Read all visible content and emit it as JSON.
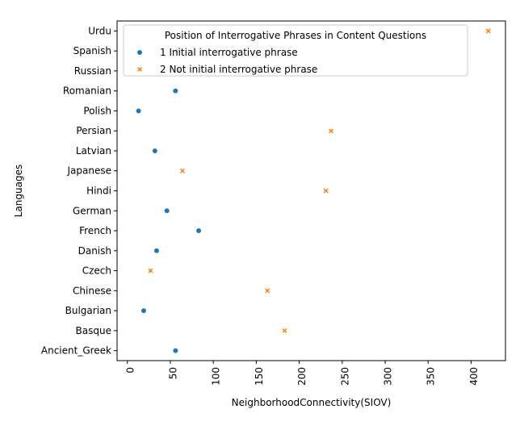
{
  "chart_data": {
    "type": "scatter",
    "xlabel": "NeighborhoodConnectivity(SIOV)",
    "ylabel": "Languages",
    "xlim": [
      -12,
      440
    ],
    "xticks": [
      0,
      50,
      100,
      150,
      200,
      250,
      300,
      350,
      400
    ],
    "categories": [
      "Urdu",
      "Spanish",
      "Russian",
      "Romanian",
      "Polish",
      "Persian",
      "Latvian",
      "Japanese",
      "Hindi",
      "German",
      "French",
      "Danish",
      "Czech",
      "Chinese",
      "Bulgarian",
      "Basque",
      "Ancient_Greek"
    ],
    "legend": {
      "title": "Position of Interrogative Phrases in Content Questions",
      "placement": "top"
    },
    "series": [
      {
        "name": "1 Initial interrogative phrase",
        "marker": "circle",
        "color": "#1f77b4",
        "points": [
          {
            "language": "Spanish",
            "x": 58
          },
          {
            "language": "Russian",
            "x": 60
          },
          {
            "language": "Romanian",
            "x": 56
          },
          {
            "language": "Polish",
            "x": 13
          },
          {
            "language": "Latvian",
            "x": 32
          },
          {
            "language": "German",
            "x": 46
          },
          {
            "language": "French",
            "x": 83
          },
          {
            "language": "Danish",
            "x": 34
          },
          {
            "language": "Bulgarian",
            "x": 19
          },
          {
            "language": "Ancient_Greek",
            "x": 56
          }
        ]
      },
      {
        "name": "2 Not initial interrogative phrase",
        "marker": "x",
        "color": "#ff7f0e",
        "points": [
          {
            "language": "Urdu",
            "x": 420
          },
          {
            "language": "Persian",
            "x": 237
          },
          {
            "language": "Japanese",
            "x": 64
          },
          {
            "language": "Hindi",
            "x": 231
          },
          {
            "language": "Czech",
            "x": 27
          },
          {
            "language": "Chinese",
            "x": 163
          },
          {
            "language": "Basque",
            "x": 183
          }
        ]
      }
    ]
  }
}
